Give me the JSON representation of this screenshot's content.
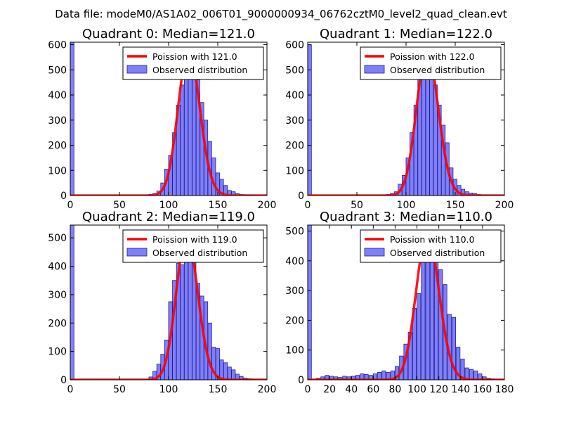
{
  "figure": {
    "suptitle": "Data file: modeM0/AS1A02_006T01_9000000934_06762cztM0_level2_quad_clean.evt"
  },
  "colors": {
    "bar_fill": "#7f7ff7",
    "bar_edge": "#1f1f9f",
    "poisson_line": "#ff0000",
    "axes": "#000000"
  },
  "chart_data": [
    {
      "type": "bar",
      "title": "Quadrant 0: Median=121.0",
      "median": 121.0,
      "xlim": [
        0,
        200
      ],
      "ylim": [
        0,
        610
      ],
      "xticks": [
        0,
        50,
        100,
        150,
        200
      ],
      "yticks": [
        0,
        100,
        200,
        300,
        400,
        500,
        600
      ],
      "bin_width": 3.8,
      "bins": [
        [
          0,
          610
        ],
        [
          76,
          2
        ],
        [
          80,
          5
        ],
        [
          84,
          8
        ],
        [
          88,
          18
        ],
        [
          92,
          50
        ],
        [
          96,
          105
        ],
        [
          100,
          160
        ],
        [
          104,
          250
        ],
        [
          108,
          360
        ],
        [
          112,
          440
        ],
        [
          116,
          520
        ],
        [
          120,
          500
        ],
        [
          124,
          470
        ],
        [
          128,
          460
        ],
        [
          132,
          370
        ],
        [
          136,
          300
        ],
        [
          140,
          215
        ],
        [
          144,
          150
        ],
        [
          148,
          90
        ],
        [
          152,
          65
        ],
        [
          156,
          40
        ],
        [
          160,
          20
        ],
        [
          164,
          15
        ],
        [
          168,
          8
        ],
        [
          172,
          4
        ],
        [
          176,
          3
        ],
        [
          180,
          2
        ]
      ],
      "poisson": {
        "peak": 580
      },
      "legend": {
        "line_label": "Poission with 121.0",
        "bar_label": "Observed distribution"
      }
    },
    {
      "type": "bar",
      "title": "Quadrant 1: Median=122.0",
      "median": 122.0,
      "xlim": [
        0,
        200
      ],
      "ylim": [
        0,
        610
      ],
      "xticks": [
        0,
        50,
        100,
        150,
        200
      ],
      "yticks": [
        0,
        100,
        200,
        300,
        400,
        500,
        600
      ],
      "bin_width": 3.8,
      "bins": [
        [
          0,
          600
        ],
        [
          76,
          2
        ],
        [
          80,
          4
        ],
        [
          84,
          8
        ],
        [
          88,
          15
        ],
        [
          92,
          45
        ],
        [
          96,
          80
        ],
        [
          100,
          150
        ],
        [
          104,
          250
        ],
        [
          108,
          360
        ],
        [
          112,
          480
        ],
        [
          116,
          540
        ],
        [
          120,
          570
        ],
        [
          124,
          480
        ],
        [
          128,
          440
        ],
        [
          132,
          360
        ],
        [
          136,
          280
        ],
        [
          140,
          210
        ],
        [
          144,
          110
        ],
        [
          148,
          65
        ],
        [
          152,
          40
        ],
        [
          156,
          25
        ],
        [
          160,
          15
        ],
        [
          164,
          10
        ],
        [
          168,
          8
        ],
        [
          172,
          4
        ],
        [
          176,
          2
        ]
      ],
      "poisson": {
        "peak": 575
      },
      "legend": {
        "line_label": "Poission with 122.0",
        "bar_label": "Observed distribution"
      }
    },
    {
      "type": "bar",
      "title": "Quadrant 2: Median=119.0",
      "median": 119.0,
      "xlim": [
        0,
        200
      ],
      "ylim": [
        0,
        545
      ],
      "xticks": [
        0,
        50,
        100,
        150,
        200
      ],
      "yticks": [
        0,
        100,
        200,
        300,
        400,
        500
      ],
      "bin_width": 3.8,
      "bins": [
        [
          0,
          545
        ],
        [
          80,
          10
        ],
        [
          84,
          30
        ],
        [
          88,
          55
        ],
        [
          92,
          90
        ],
        [
          96,
          140
        ],
        [
          100,
          275
        ],
        [
          104,
          350
        ],
        [
          108,
          410
        ],
        [
          112,
          405
        ],
        [
          116,
          455
        ],
        [
          120,
          500
        ],
        [
          124,
          420
        ],
        [
          128,
          340
        ],
        [
          132,
          295
        ],
        [
          136,
          275
        ],
        [
          140,
          200
        ],
        [
          144,
          115
        ],
        [
          148,
          110
        ],
        [
          152,
          70
        ],
        [
          156,
          60
        ],
        [
          160,
          45
        ],
        [
          164,
          35
        ],
        [
          168,
          20
        ],
        [
          172,
          12
        ],
        [
          176,
          6
        ],
        [
          180,
          4
        ],
        [
          184,
          2
        ]
      ],
      "poisson": {
        "peak": 510
      },
      "legend": {
        "line_label": "Poission with 119.0",
        "bar_label": "Observed distribution"
      }
    },
    {
      "type": "bar",
      "title": "Quadrant 3: Median=110.0",
      "median": 110.0,
      "xlim": [
        0,
        180
      ],
      "ylim": [
        0,
        520
      ],
      "xticks": [
        0,
        20,
        40,
        60,
        80,
        100,
        120,
        140,
        160,
        180
      ],
      "yticks": [
        0,
        100,
        200,
        300,
        400,
        500
      ],
      "bin_width": 3.4,
      "bins": [
        [
          0,
          520
        ],
        [
          8,
          5
        ],
        [
          12,
          10
        ],
        [
          16,
          15
        ],
        [
          20,
          12
        ],
        [
          24,
          10
        ],
        [
          28,
          8
        ],
        [
          32,
          12
        ],
        [
          36,
          10
        ],
        [
          40,
          12
        ],
        [
          44,
          15
        ],
        [
          48,
          20
        ],
        [
          52,
          18
        ],
        [
          56,
          15
        ],
        [
          60,
          20
        ],
        [
          64,
          25
        ],
        [
          68,
          30
        ],
        [
          72,
          25
        ],
        [
          76,
          30
        ],
        [
          80,
          45
        ],
        [
          84,
          80
        ],
        [
          88,
          120
        ],
        [
          92,
          160
        ],
        [
          96,
          240
        ],
        [
          100,
          290
        ],
        [
          104,
          400
        ],
        [
          108,
          470
        ],
        [
          112,
          480
        ],
        [
          116,
          460
        ],
        [
          120,
          370
        ],
        [
          124,
          320
        ],
        [
          128,
          220
        ],
        [
          132,
          210
        ],
        [
          136,
          110
        ],
        [
          140,
          70
        ],
        [
          144,
          40
        ],
        [
          148,
          35
        ],
        [
          152,
          30
        ],
        [
          156,
          20
        ],
        [
          160,
          10
        ],
        [
          164,
          5
        ],
        [
          168,
          3
        ]
      ],
      "poisson": {
        "peak": 490
      },
      "legend": {
        "line_label": "Poission with 110.0",
        "bar_label": "Observed distribution"
      }
    }
  ]
}
